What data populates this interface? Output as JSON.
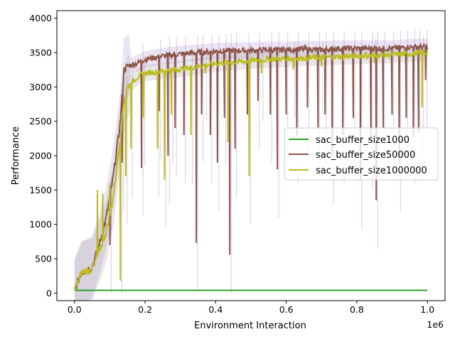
{
  "chart_data": {
    "type": "line",
    "title": "",
    "xlabel": "Environment Interaction",
    "ylabel": "Performance",
    "x_offset_label": "1e6",
    "xlim": [
      -0.05,
      1.05
    ],
    "ylim": [
      -110,
      4110
    ],
    "x_ticks": [
      0.0,
      0.2,
      0.4,
      0.6,
      0.8,
      1.0
    ],
    "x_tick_labels": [
      "0.0",
      "0.2",
      "0.4",
      "0.6",
      "0.8",
      "1.0"
    ],
    "y_ticks": [
      0,
      500,
      1000,
      1500,
      2000,
      2500,
      3000,
      3500,
      4000
    ],
    "y_tick_labels": [
      "0",
      "500",
      "1000",
      "1500",
      "2000",
      "2500",
      "3000",
      "3500",
      "4000"
    ],
    "grid": false,
    "legend_position": "center-right",
    "series": [
      {
        "name": "sac_buffer_size1000",
        "color": "#2ca02c",
        "x": [
          0.0,
          0.01,
          0.1,
          0.2,
          0.3,
          0.4,
          0.5,
          0.6,
          0.7,
          0.8,
          0.9,
          1.0
        ],
        "values": [
          40,
          40,
          40,
          40,
          40,
          40,
          40,
          40,
          40,
          40,
          40,
          40
        ]
      },
      {
        "name": "sac_buffer_size50000",
        "color": "#8c564b",
        "x": [
          0.0,
          0.02,
          0.05,
          0.07,
          0.09,
          0.11,
          0.13,
          0.14,
          0.15,
          0.18,
          0.2,
          0.25,
          0.3,
          0.35,
          0.4,
          0.45,
          0.5,
          0.55,
          0.6,
          0.65,
          0.7,
          0.75,
          0.8,
          0.85,
          0.9,
          0.95,
          1.0
        ],
        "values": [
          40,
          300,
          380,
          700,
          1100,
          1700,
          2500,
          3250,
          3300,
          3350,
          3400,
          3450,
          3480,
          3500,
          3520,
          3530,
          3530,
          3540,
          3540,
          3550,
          3540,
          3560,
          3560,
          3560,
          3560,
          3580,
          3580
        ]
      },
      {
        "name": "sac_buffer_size1000000",
        "color": "#bcbd22",
        "x": [
          0.0,
          0.02,
          0.05,
          0.07,
          0.09,
          0.11,
          0.13,
          0.14,
          0.15,
          0.18,
          0.2,
          0.25,
          0.3,
          0.35,
          0.4,
          0.45,
          0.5,
          0.55,
          0.6,
          0.65,
          0.7,
          0.75,
          0.8,
          0.85,
          0.9,
          0.95,
          1.0
        ],
        "values": [
          40,
          300,
          350,
          600,
          900,
          1400,
          2300,
          2800,
          3000,
          3150,
          3200,
          3230,
          3260,
          3300,
          3340,
          3360,
          3380,
          3400,
          3410,
          3420,
          3430,
          3440,
          3450,
          3460,
          3470,
          3480,
          3500
        ]
      }
    ],
    "series_dips": {
      "sac_buffer_size50000": [
        [
          0.1,
          700
        ],
        [
          0.135,
          1900
        ],
        [
          0.19,
          1820
        ],
        [
          0.24,
          2650
        ],
        [
          0.265,
          2000
        ],
        [
          0.285,
          2400
        ],
        [
          0.31,
          2300
        ],
        [
          0.345,
          730
        ],
        [
          0.36,
          2600
        ],
        [
          0.385,
          2300
        ],
        [
          0.405,
          1900
        ],
        [
          0.425,
          2550
        ],
        [
          0.44,
          560
        ],
        [
          0.455,
          2100
        ],
        [
          0.49,
          2600
        ],
        [
          0.52,
          2800
        ],
        [
          0.555,
          2600
        ],
        [
          0.575,
          1800
        ],
        [
          0.6,
          2600
        ],
        [
          0.63,
          2300
        ],
        [
          0.66,
          2700
        ],
        [
          0.69,
          2400
        ],
        [
          0.71,
          2600
        ],
        [
          0.73,
          2000
        ],
        [
          0.76,
          2300
        ],
        [
          0.79,
          2550
        ],
        [
          0.81,
          1650
        ],
        [
          0.84,
          2200
        ],
        [
          0.855,
          1350
        ],
        [
          0.875,
          2400
        ],
        [
          0.9,
          2600
        ],
        [
          0.92,
          1900
        ],
        [
          0.94,
          2550
        ],
        [
          0.96,
          2300
        ],
        [
          0.975,
          2350
        ],
        [
          0.995,
          3100
        ]
      ],
      "sac_buffer_size1000000": [
        [
          0.065,
          1500
        ],
        [
          0.08,
          1450
        ],
        [
          0.1,
          1600
        ],
        [
          0.13,
          180
        ],
        [
          0.145,
          1700
        ],
        [
          0.16,
          2100
        ],
        [
          0.195,
          2550
        ],
        [
          0.235,
          2100
        ],
        [
          0.255,
          1650
        ],
        [
          0.275,
          2600
        ],
        [
          0.33,
          2300
        ],
        [
          0.37,
          3200
        ],
        [
          0.435,
          2200
        ],
        [
          0.495,
          1700
        ],
        [
          0.53,
          3200
        ],
        [
          0.62,
          3250
        ],
        [
          0.7,
          3300
        ],
        [
          0.85,
          3350
        ],
        [
          0.985,
          2700
        ]
      ]
    }
  }
}
